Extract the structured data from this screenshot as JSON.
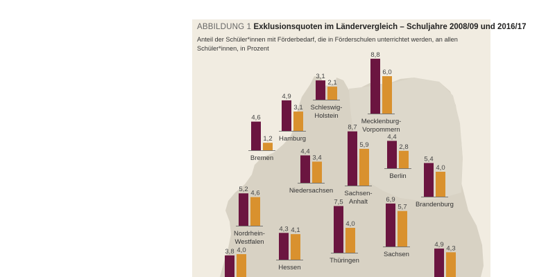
{
  "header": {
    "figure_label": "ABBILDUNG 1",
    "title": "Exklusionsquoten im Ländervergleich – Schuljahre 2008/09 und 2016/17",
    "subtitle": "Anteil der Schüler*innen mit Förderbedarf, die in Förderschulen unterrichtet werden, an allen Schüler*innen, in Prozent"
  },
  "colors": {
    "background": "#f1ece1",
    "map": "#d8d2c4",
    "series_2008": "#6b1540",
    "series_2016": "#d9912e"
  },
  "chart_data": {
    "type": "bar",
    "unit": "Prozent",
    "states": [
      {
        "id": "schleswig-holstein",
        "lines": [
          "Schleswig-",
          "Holstein"
        ],
        "v2008": 3.1,
        "v2016": 2.1,
        "v2008_label": "3,1",
        "v2016_label": "2,1"
      },
      {
        "id": "mecklenburg-vorpommern",
        "lines": [
          "Mecklenburg-",
          "Vorpommern"
        ],
        "v2008": 8.8,
        "v2016": 6.0,
        "v2008_label": "8,8",
        "v2016_label": "6,0"
      },
      {
        "id": "hamburg",
        "lines": [
          "Hamburg"
        ],
        "v2008": 4.9,
        "v2016": 3.1,
        "v2008_label": "4,9",
        "v2016_label": "3,1"
      },
      {
        "id": "bremen",
        "lines": [
          "Bremen"
        ],
        "v2008": 4.6,
        "v2016": 1.2,
        "v2008_label": "4,6",
        "v2016_label": "1,2"
      },
      {
        "id": "niedersachsen",
        "lines": [
          "Niedersachsen"
        ],
        "v2008": 4.4,
        "v2016": 3.4,
        "v2008_label": "4,4",
        "v2016_label": "3,4"
      },
      {
        "id": "sachsen-anhalt",
        "lines": [
          "Sachsen-",
          "Anhalt"
        ],
        "v2008": 8.7,
        "v2016": 5.9,
        "v2008_label": "8,7",
        "v2016_label": "5,9"
      },
      {
        "id": "berlin",
        "lines": [
          "Berlin"
        ],
        "v2008": 4.4,
        "v2016": 2.8,
        "v2008_label": "4,4",
        "v2016_label": "2,8"
      },
      {
        "id": "brandenburg",
        "lines": [
          "Brandenburg"
        ],
        "v2008": 5.4,
        "v2016": 4.0,
        "v2008_label": "5,4",
        "v2016_label": "4,0"
      },
      {
        "id": "nordrhein-westfalen",
        "lines": [
          "Nordrhein-",
          "Westfalen"
        ],
        "v2008": 5.2,
        "v2016": 4.6,
        "v2008_label": "5,2",
        "v2016_label": "4,6"
      },
      {
        "id": "hessen",
        "lines": [
          "Hessen"
        ],
        "v2008": 4.3,
        "v2016": 4.1,
        "v2008_label": "4,3",
        "v2016_label": "4,1"
      },
      {
        "id": "thueringen",
        "lines": [
          "Thüringen"
        ],
        "v2008": 7.5,
        "v2016": 4.0,
        "v2008_label": "7,5",
        "v2016_label": "4,0"
      },
      {
        "id": "sachsen",
        "lines": [
          "Sachsen"
        ],
        "v2008": 6.9,
        "v2016": 5.7,
        "v2008_label": "6,9",
        "v2016_label": "5,7"
      },
      {
        "id": "rheinland-pfalz",
        "lines": [],
        "v2008": 3.8,
        "v2016": 4.0,
        "v2008_label": "3,8",
        "v2016_label": "4,0"
      },
      {
        "id": "bayern",
        "lines": [],
        "v2008": 4.9,
        "v2016": 4.3,
        "v2008_label": "4,9",
        "v2016_label": "4,3"
      }
    ]
  }
}
